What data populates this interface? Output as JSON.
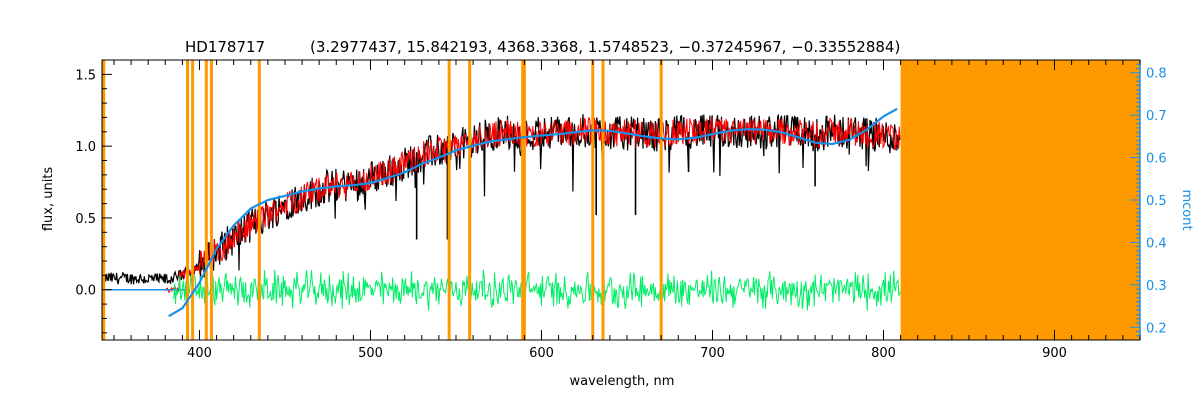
{
  "chart_data": {
    "type": "line",
    "title_star": "HD178717",
    "title_params": "(3.2977437, 15.842193, 4368.3368, 1.5748523, −0.37245967, −0.33552884)",
    "xlabel": "wavelength, nm",
    "ylabel": "flux, units",
    "y2label": "mcont",
    "xlim": [
      343,
      950
    ],
    "ylim": [
      -0.35,
      1.6
    ],
    "y2lim": [
      0.17,
      0.83
    ],
    "x_ticks": [
      400,
      500,
      600,
      700,
      800,
      900
    ],
    "x_tick_labels": [
      "400",
      "500",
      "600",
      "700",
      "800",
      "900"
    ],
    "y_ticks": [
      0.0,
      0.5,
      1.0,
      1.5
    ],
    "y_tick_labels": [
      "0.0",
      "0.5",
      "1.0",
      "1.5"
    ],
    "y2_ticks": [
      0.2,
      0.3,
      0.4,
      0.5,
      0.6,
      0.7,
      0.8
    ],
    "y2_tick_labels": [
      "0.2",
      "0.3",
      "0.4",
      "0.5",
      "0.6",
      "0.7",
      "0.8"
    ],
    "grid": false,
    "colors": {
      "observed": "#000000",
      "model": "#ff0000",
      "residual": "#00ee66",
      "continuum": "#1a8fe6",
      "masked": "#ff9900",
      "y2_axis": "#1a8fe6"
    },
    "masked_region": [
      810,
      950
    ],
    "masked_lines": [
      344,
      393,
      396,
      404,
      407,
      435,
      546,
      558,
      589,
      590,
      630,
      636,
      670
    ],
    "continuum_mcont": {
      "x": [
        382,
        390,
        400,
        410,
        420,
        430,
        440,
        450,
        460,
        470,
        480,
        490,
        500,
        510,
        520,
        530,
        540,
        550,
        560,
        570,
        580,
        590,
        600,
        610,
        620,
        630,
        640,
        650,
        660,
        670,
        680,
        690,
        700,
        710,
        720,
        730,
        740,
        750,
        760,
        770,
        780,
        790,
        800,
        808
      ],
      "y": [
        0.226,
        0.245,
        0.305,
        0.385,
        0.44,
        0.48,
        0.5,
        0.51,
        0.52,
        0.527,
        0.532,
        0.535,
        0.54,
        0.552,
        0.565,
        0.585,
        0.6,
        0.617,
        0.628,
        0.638,
        0.643,
        0.648,
        0.652,
        0.655,
        0.66,
        0.664,
        0.663,
        0.657,
        0.65,
        0.645,
        0.643,
        0.647,
        0.655,
        0.663,
        0.667,
        0.666,
        0.66,
        0.648,
        0.635,
        0.632,
        0.642,
        0.665,
        0.697,
        0.715
      ]
    },
    "observed_envelope": {
      "x": [
        343,
        360,
        380,
        390,
        400,
        410,
        420,
        430,
        440,
        450,
        460,
        470,
        480,
        490,
        500,
        510,
        520,
        530,
        540,
        550,
        560,
        570,
        580,
        590,
        600,
        610,
        620,
        630,
        640,
        650,
        660,
        670,
        680,
        690,
        700,
        710,
        720,
        730,
        740,
        750,
        760,
        770,
        780,
        790,
        800,
        810
      ],
      "y": [
        0.08,
        0.08,
        0.07,
        0.1,
        0.17,
        0.27,
        0.36,
        0.45,
        0.52,
        0.6,
        0.64,
        0.7,
        0.73,
        0.73,
        0.78,
        0.82,
        0.88,
        0.94,
        0.97,
        1.0,
        1.04,
        1.08,
        1.1,
        1.07,
        1.1,
        1.1,
        1.1,
        1.11,
        1.09,
        1.09,
        1.08,
        1.08,
        1.1,
        1.1,
        1.1,
        1.1,
        1.1,
        1.1,
        1.11,
        1.09,
        1.08,
        1.1,
        1.1,
        1.09,
        1.07,
        1.05
      ]
    },
    "noise_amplitude": 0.12,
    "residual_level": 0.0,
    "residual_scatter": 0.1,
    "deep_absorption_lines": [
      {
        "x": 432,
        "y": 0.42
      },
      {
        "x": 470,
        "y": 0.58
      },
      {
        "x": 527,
        "y": 0.35
      },
      {
        "x": 545,
        "y": 0.35
      },
      {
        "x": 589,
        "y": 0.35
      },
      {
        "x": 632,
        "y": 0.52
      },
      {
        "x": 655,
        "y": 0.52
      },
      {
        "x": 686,
        "y": 0.82
      },
      {
        "x": 760,
        "y": 0.72
      }
    ]
  }
}
